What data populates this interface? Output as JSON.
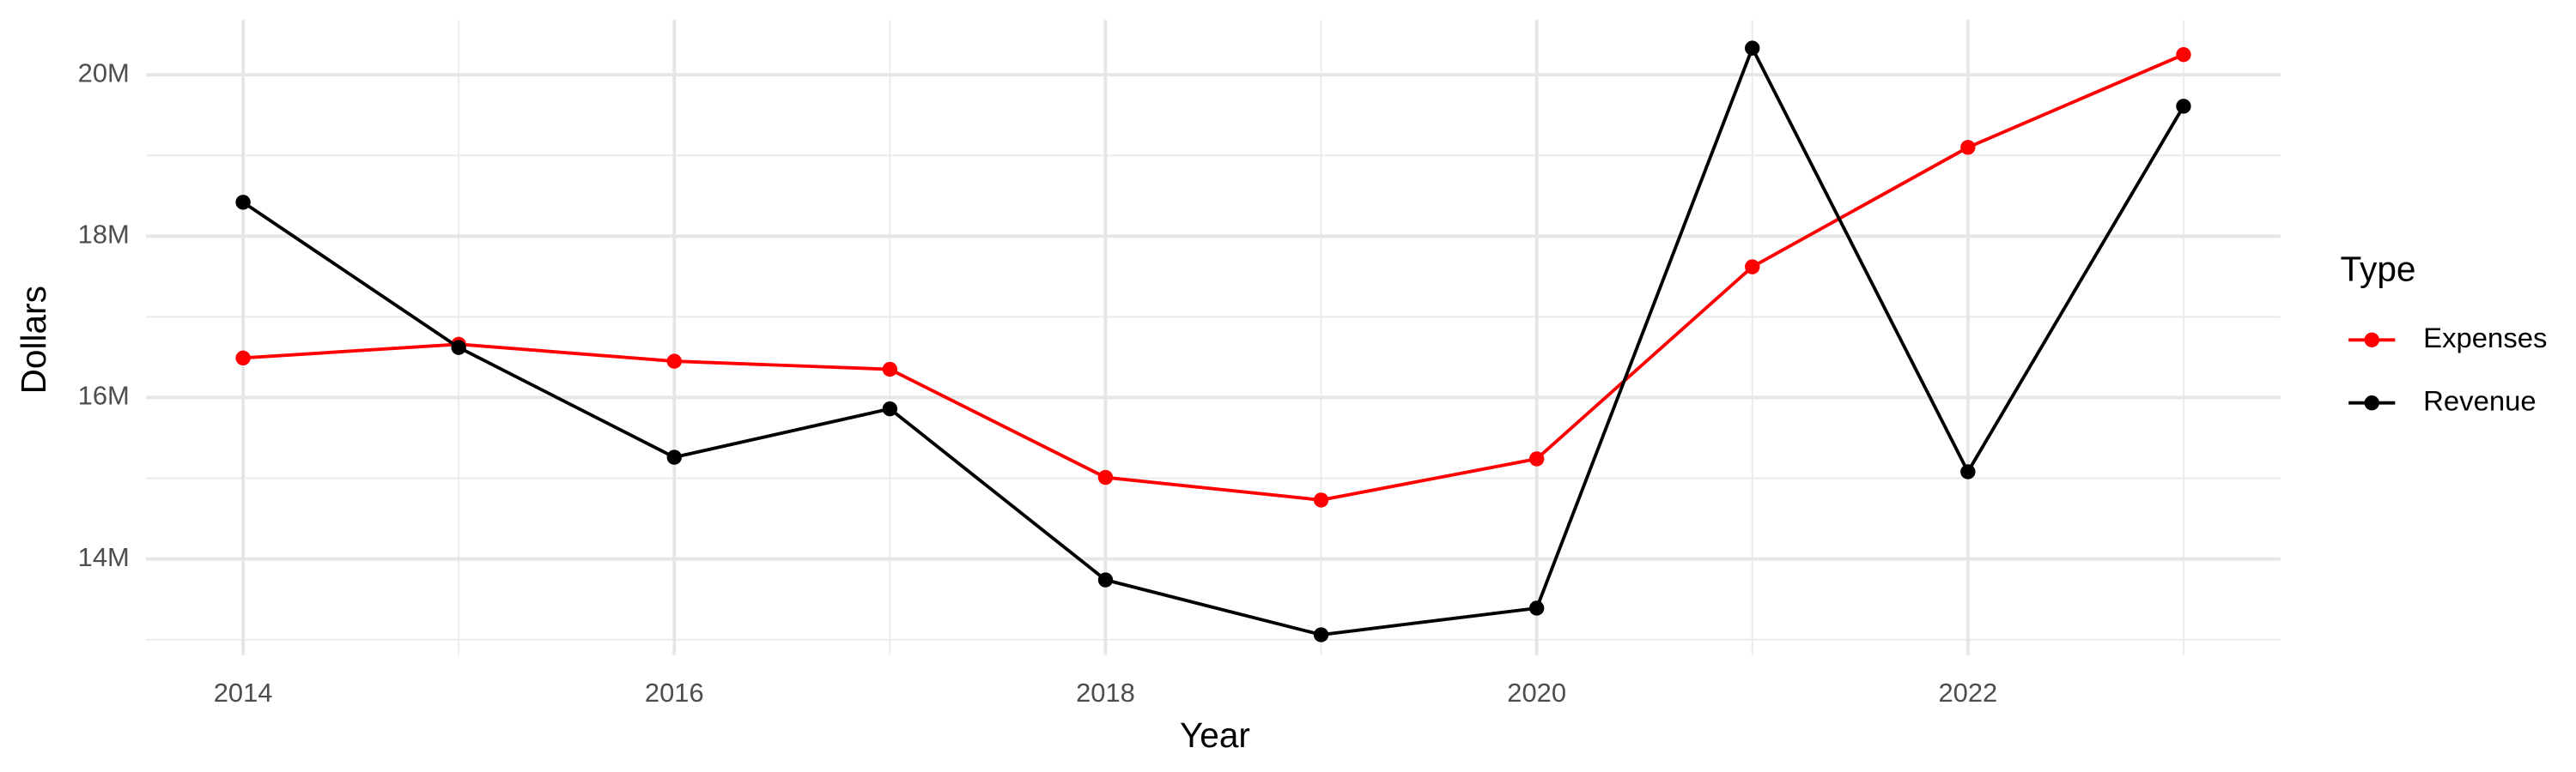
{
  "chart_data": {
    "type": "line",
    "x_label": "Year",
    "y_label": "Dollars",
    "legend_title": "Type",
    "x": [
      2014,
      2015,
      2016,
      2017,
      2018,
      2019,
      2020,
      2021,
      2022,
      2023
    ],
    "series": [
      {
        "name": "Expenses",
        "color": "#ff0000",
        "values": [
          16490000,
          16660000,
          16450000,
          16350000,
          15010000,
          14730000,
          15240000,
          17620000,
          19100000,
          20250000
        ]
      },
      {
        "name": "Revenue",
        "color": "#000000",
        "values": [
          18420000,
          16620000,
          15260000,
          15860000,
          13740000,
          13060000,
          13390000,
          20330000,
          15080000,
          19610000
        ]
      }
    ],
    "xlim": [
      2013.55,
      2023.45
    ],
    "xticks": [
      2014,
      2016,
      2018,
      2020,
      2022
    ],
    "x_minor_ticks": [
      2015,
      2017,
      2019,
      2021,
      2023
    ],
    "ylim": [
      12810000,
      20680000
    ],
    "yticks": [
      {
        "value": 14000000,
        "label": "14M"
      },
      {
        "value": 16000000,
        "label": "16M"
      },
      {
        "value": 18000000,
        "label": "18M"
      },
      {
        "value": 20000000,
        "label": "20M"
      }
    ],
    "y_minor_ticks": [
      13000000,
      15000000,
      17000000,
      19000000
    ],
    "grid": true,
    "legend": "right"
  }
}
